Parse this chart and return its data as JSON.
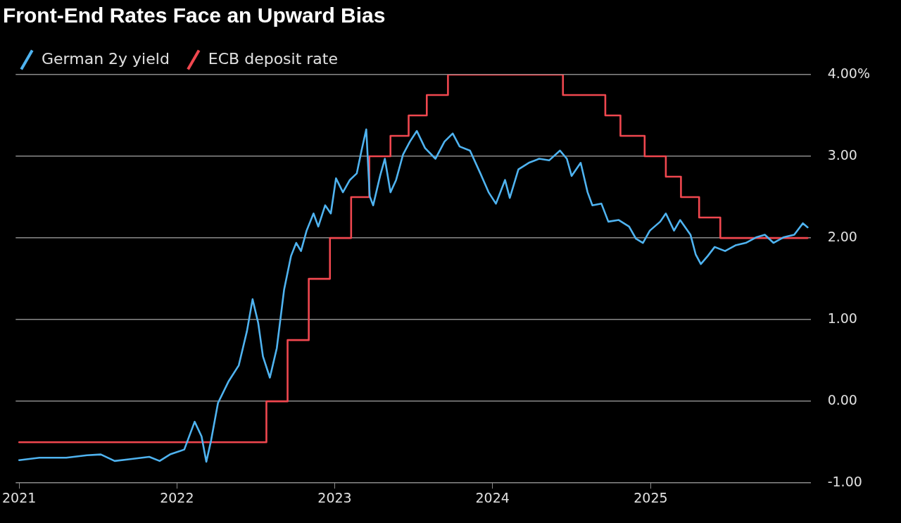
{
  "chart_data": {
    "type": "line",
    "title": "Front-End Rates Face an Upward Bias",
    "series": [
      {
        "name": "German 2y yield",
        "color": "#4fb3f0",
        "x": [
          "2021-01-01",
          "2021-02-17",
          "2021-04-20",
          "2021-06-07",
          "2021-07-09",
          "2021-08-10",
          "2021-09-12",
          "2021-10-29",
          "2021-11-22",
          "2021-12-16",
          "2022-01-18",
          "2022-02-11",
          "2022-02-27",
          "2022-03-10",
          "2022-03-21",
          "2022-04-06",
          "2022-04-30",
          "2022-05-24",
          "2022-06-12",
          "2022-06-25",
          "2022-07-08",
          "2022-07-19",
          "2022-08-04",
          "2022-08-20",
          "2022-09-06",
          "2022-09-22",
          "2022-10-04",
          "2022-10-15",
          "2022-10-28",
          "2022-11-13",
          "2022-11-24",
          "2022-12-10",
          "2022-12-23",
          "2023-01-04",
          "2023-01-20",
          "2023-02-05",
          "2023-02-21",
          "2023-03-04",
          "2023-03-15",
          "2023-03-23",
          "2023-03-31",
          "2023-04-16",
          "2023-04-27",
          "2023-05-10",
          "2023-05-23",
          "2023-06-08",
          "2023-06-24",
          "2023-07-10",
          "2023-07-29",
          "2023-08-22",
          "2023-09-12",
          "2023-10-01",
          "2023-10-17",
          "2023-11-10",
          "2023-12-04",
          "2023-12-23",
          "2024-01-09",
          "2024-01-30",
          "2024-02-10",
          "2024-03-01",
          "2024-03-25",
          "2024-04-18",
          "2024-05-11",
          "2024-06-05",
          "2024-06-21",
          "2024-07-02",
          "2024-07-23",
          "2024-08-08",
          "2024-08-19",
          "2024-09-09",
          "2024-09-25",
          "2024-10-19",
          "2024-11-12",
          "2024-11-28",
          "2024-12-14",
          "2024-12-30",
          "2025-01-23",
          "2025-02-05",
          "2025-02-24",
          "2025-03-10",
          "2025-04-03",
          "2025-04-15",
          "2025-04-27",
          "2025-05-13",
          "2025-05-29",
          "2025-06-22",
          "2025-07-16",
          "2025-08-09",
          "2025-09-03",
          "2025-09-22",
          "2025-10-12",
          "2025-11-05",
          "2025-11-29",
          "2025-12-19",
          "2025-12-30"
        ],
        "values": [
          -0.72,
          -0.69,
          -0.69,
          -0.66,
          -0.65,
          -0.73,
          -0.71,
          -0.68,
          -0.73,
          -0.65,
          -0.59,
          -0.25,
          -0.43,
          -0.74,
          -0.48,
          -0.02,
          0.24,
          0.44,
          0.86,
          1.25,
          0.96,
          0.55,
          0.29,
          0.65,
          1.37,
          1.78,
          1.94,
          1.84,
          2.09,
          2.3,
          2.14,
          2.4,
          2.3,
          2.73,
          2.56,
          2.71,
          2.79,
          3.07,
          3.33,
          2.51,
          2.4,
          2.76,
          2.97,
          2.56,
          2.71,
          3.02,
          3.18,
          3.31,
          3.1,
          2.97,
          3.18,
          3.28,
          3.12,
          3.07,
          2.79,
          2.56,
          2.42,
          2.71,
          2.49,
          2.84,
          2.92,
          2.97,
          2.95,
          3.07,
          2.97,
          2.76,
          2.92,
          2.56,
          2.4,
          2.42,
          2.2,
          2.22,
          2.14,
          1.99,
          1.94,
          2.09,
          2.2,
          2.3,
          2.09,
          2.22,
          2.04,
          1.8,
          1.68,
          1.78,
          1.89,
          1.84,
          1.91,
          1.94,
          2.01,
          2.04,
          1.94,
          2.01,
          2.04,
          2.18,
          2.13
        ]
      },
      {
        "name": "ECB deposit rate",
        "color": "#f0474f",
        "type": "step",
        "x": [
          "2021-01-01",
          "2022-07-27",
          "2022-09-14",
          "2022-11-02",
          "2022-12-21",
          "2023-02-08",
          "2023-03-22",
          "2023-05-10",
          "2023-06-21",
          "2023-08-02",
          "2023-09-20",
          "2024-06-12",
          "2024-09-18",
          "2024-10-23",
          "2024-12-18",
          "2025-02-05",
          "2025-03-12",
          "2025-04-23",
          "2025-06-11",
          "2025-12-30"
        ],
        "values": [
          -0.5,
          0,
          0.75,
          1.5,
          2,
          2.5,
          3,
          3.25,
          3.5,
          3.75,
          4,
          3.75,
          3.5,
          3.25,
          3,
          2.75,
          2.5,
          2.25,
          2,
          2
        ]
      }
    ],
    "xlim": [
      "2020-12-24",
      "2026-01-06"
    ],
    "xticks": [
      {
        "value": "2021-01-01",
        "label": "2021"
      },
      {
        "value": "2022-01-01",
        "label": "2022"
      },
      {
        "value": "2023-01-01",
        "label": "2023"
      },
      {
        "value": "2024-01-01",
        "label": "2024"
      },
      {
        "value": "2025-01-01",
        "label": "2025"
      }
    ],
    "ylim": [
      -1,
      4
    ],
    "yticks": [
      {
        "value": -1,
        "label": "-1.00"
      },
      {
        "value": 0,
        "label": "0.00"
      },
      {
        "value": 1,
        "label": "1.00"
      },
      {
        "value": 2,
        "label": "2.00"
      },
      {
        "value": 3,
        "label": "3.00"
      },
      {
        "value": 4,
        "label": "4.00%"
      }
    ],
    "grid": "y",
    "legend": "top left",
    "marker": "none",
    "line_style": "solid"
  }
}
